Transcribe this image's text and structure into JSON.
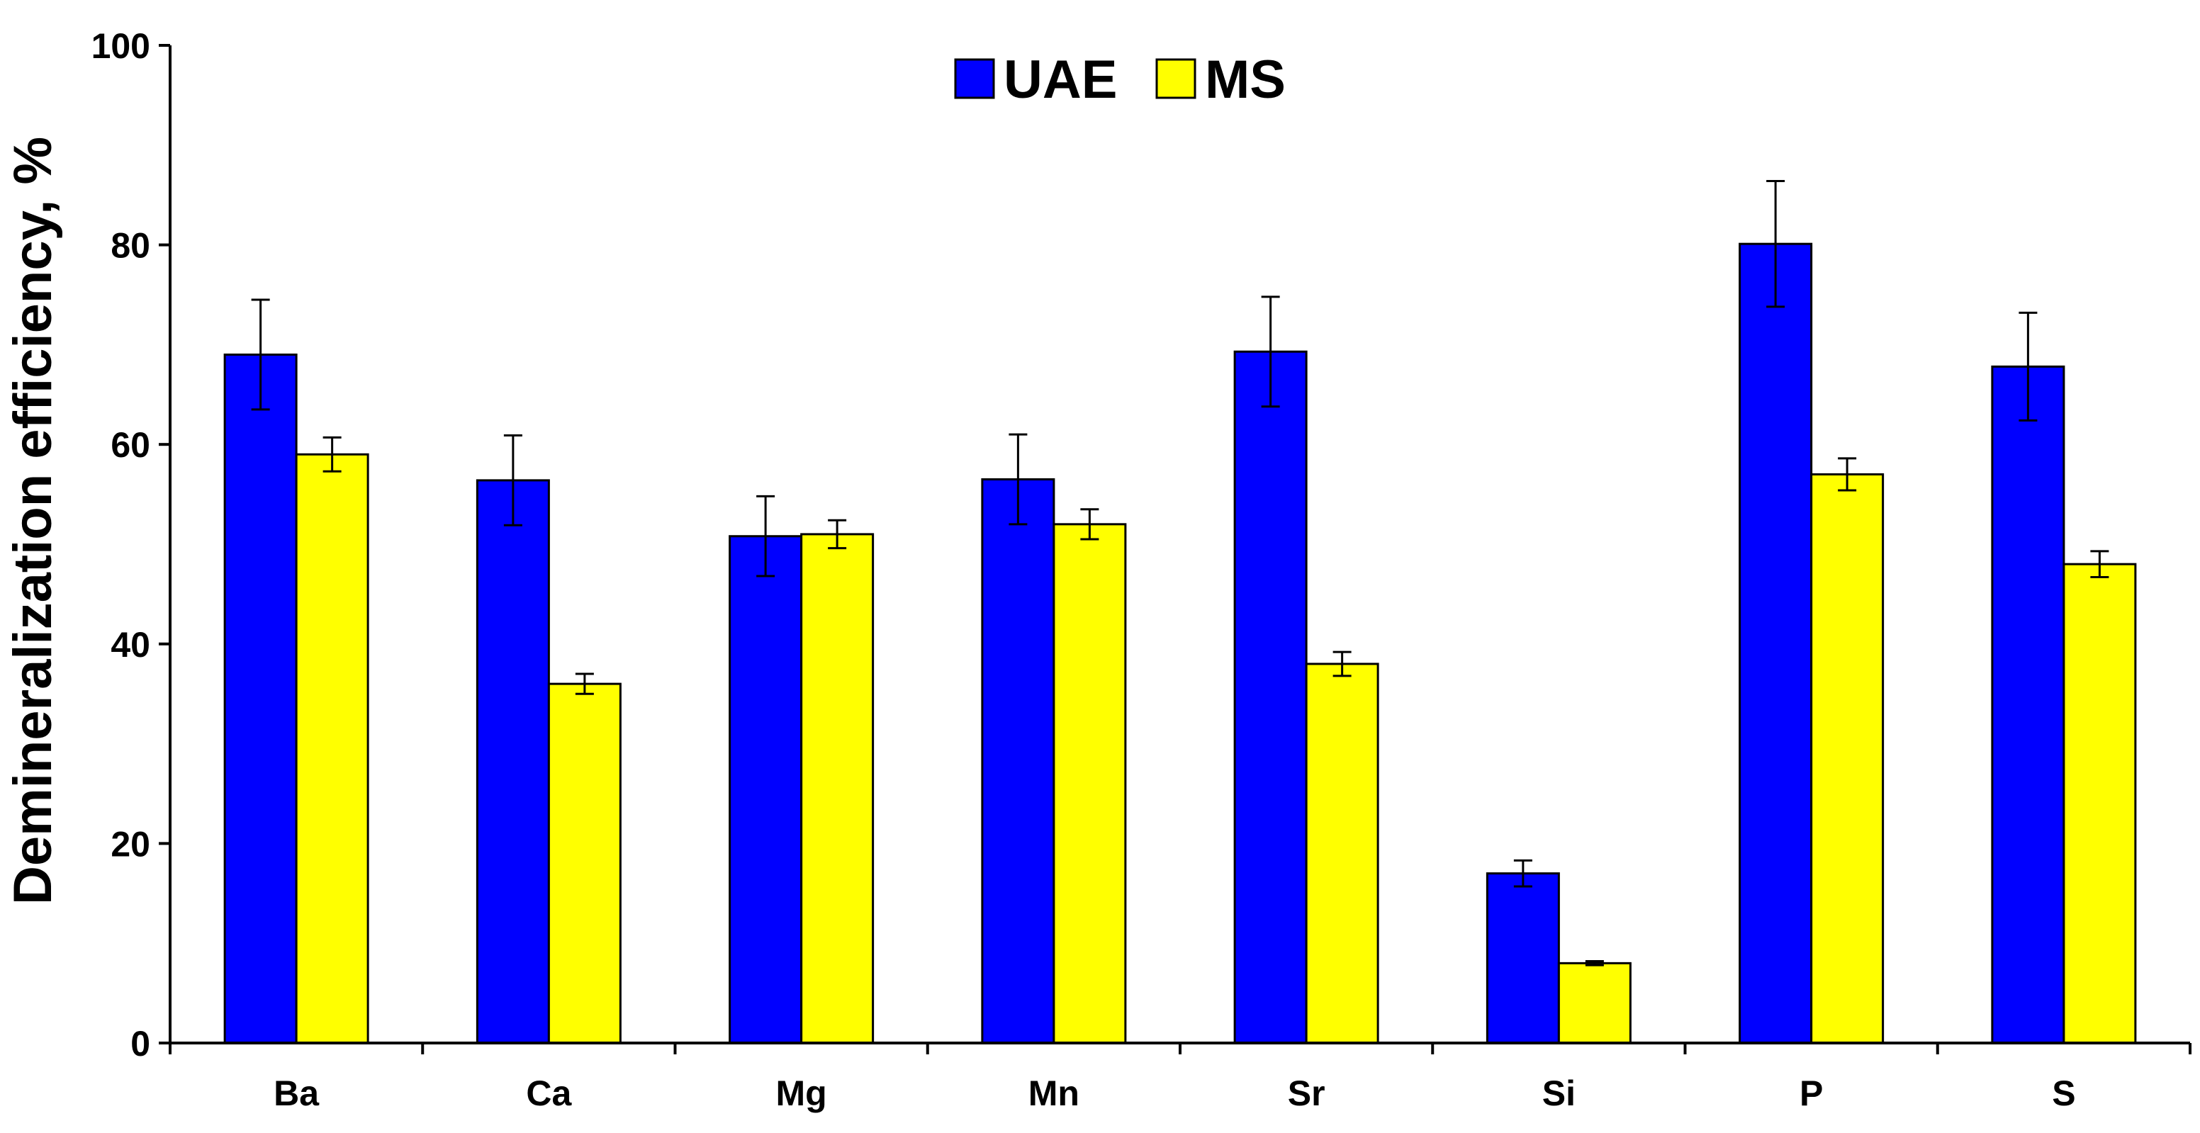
{
  "chart_data": {
    "type": "bar",
    "title": "",
    "xlabel": "",
    "ylabel": "Demineralization efficiency, %",
    "ylim": [
      0,
      100
    ],
    "yticks": [
      0,
      20,
      40,
      60,
      80,
      100
    ],
    "grid": false,
    "legend_position": "top-center",
    "categories": [
      "Ba",
      "Ca",
      "Mg",
      "Mn",
      "Sr",
      "Si",
      "P",
      "S"
    ],
    "series": [
      {
        "name": "UAE",
        "color": "#0000ff",
        "values": [
          69,
          56.4,
          50.8,
          56.5,
          69.3,
          17,
          80.1,
          67.8
        ],
        "errors": [
          5.5,
          4.5,
          4,
          4.5,
          5.5,
          1.3,
          6.3,
          5.4
        ]
      },
      {
        "name": "MS",
        "color": "#ffff00",
        "values": [
          59,
          36,
          51,
          52,
          38,
          8,
          57,
          48
        ],
        "errors": [
          1.7,
          1,
          1.4,
          1.5,
          1.2,
          0.2,
          1.6,
          1.3
        ]
      }
    ]
  }
}
